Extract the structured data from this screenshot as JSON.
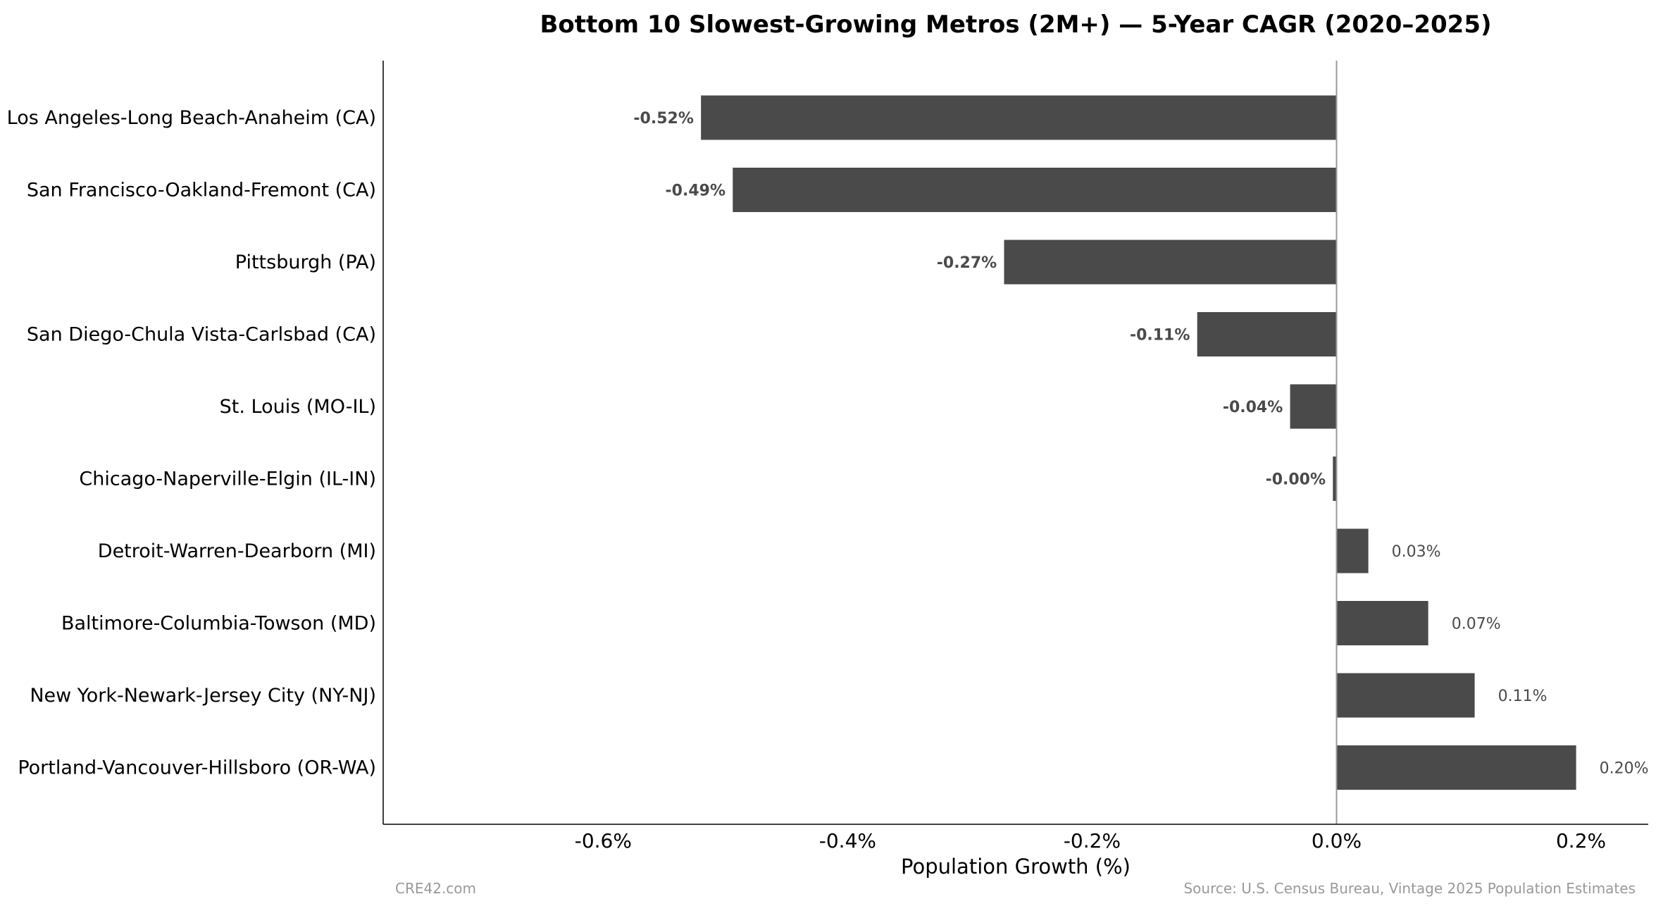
{
  "chart_data": {
    "type": "bar",
    "orientation": "horizontal",
    "title": "Bottom 10 Slowest-Growing Metros (2M+) — 5-Year CAGR (2020–2025)",
    "xlabel": "Population Growth (%)",
    "ylabel": "",
    "categories": [
      "Los Angeles-Long Beach-Anaheim (CA)",
      "San Francisco-Oakland-Fremont (CA)",
      "Pittsburgh (PA)",
      "San Diego-Chula Vista-Carlsbad (CA)",
      "St. Louis (MO-IL)",
      "Chicago-Naperville-Elgin (IL-IN)",
      "Detroit-Warren-Dearborn (MI)",
      "Baltimore-Columbia-Towson (MD)",
      "New York-Newark-Jersey City (NY-NJ)",
      "Portland-Vancouver-Hillsboro (OR-WA)"
    ],
    "values": [
      -0.52,
      -0.494,
      -0.272,
      -0.114,
      -0.038,
      -0.003,
      0.026,
      0.075,
      0.113,
      0.196
    ],
    "value_labels": [
      "-0.52%",
      "-0.49%",
      "-0.27%",
      "-0.11%",
      "-0.04%",
      "-0.00%",
      "0.03%",
      "0.07%",
      "0.11%",
      "0.20%"
    ],
    "xlim": [
      -0.78,
      0.255
    ],
    "xticks": [
      -0.6,
      -0.4,
      -0.2,
      0.0,
      0.2
    ],
    "xtick_labels": [
      "-0.6%",
      "-0.4%",
      "-0.2%",
      "0.0%",
      "0.2%"
    ],
    "grid": false,
    "legend": "none",
    "bar_color": "#4a4a4a",
    "zero_line_color": "#999999"
  },
  "footer": {
    "left": "CRE42.com",
    "right": "Source: U.S. Census Bureau, Vintage 2025 Population Estimates"
  }
}
